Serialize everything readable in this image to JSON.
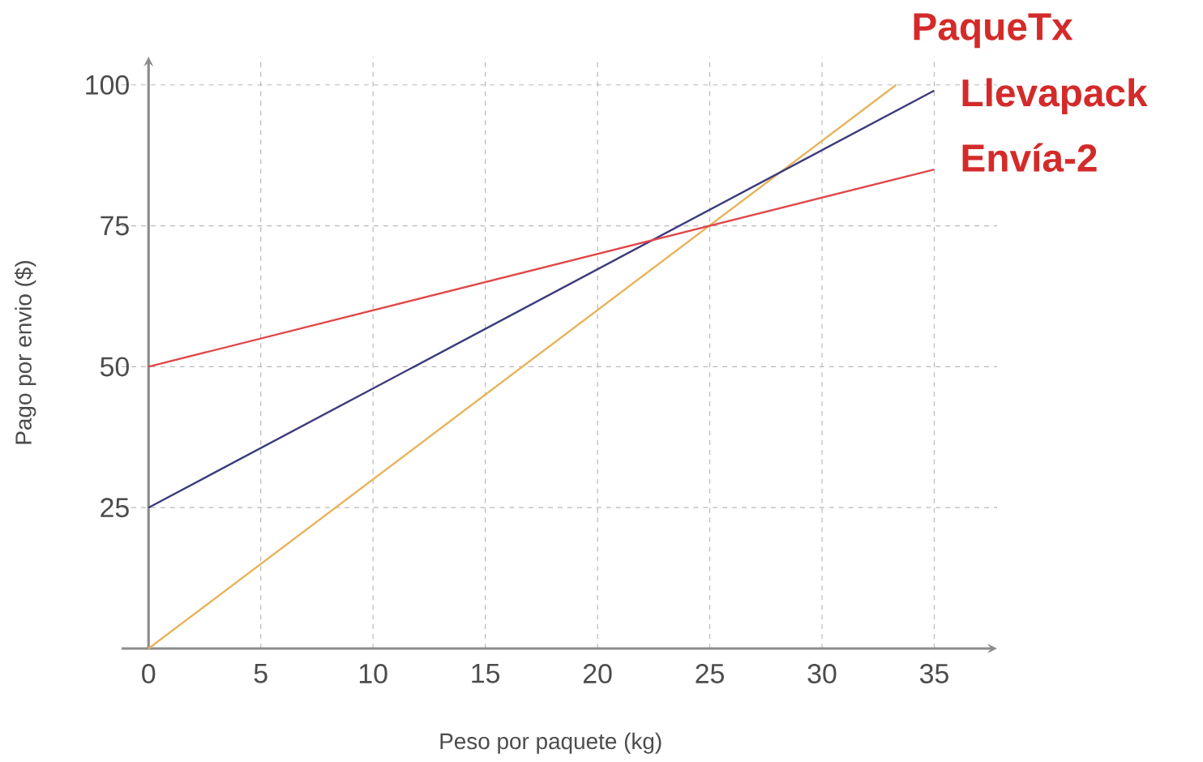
{
  "chart_data": {
    "type": "line",
    "xlabel": "Peso por paquete (kg)",
    "ylabel": "Pago por envio ($)",
    "xlim": [
      -1.2,
      37.8
    ],
    "ylim": [
      0,
      105
    ],
    "xticks": [
      0,
      5,
      10,
      15,
      20,
      25,
      30,
      35
    ],
    "yticks": [
      25,
      50,
      75,
      100
    ],
    "grid": true,
    "line_style": "solid",
    "series": [
      {
        "name": "PaqueTx",
        "color": "#e8b35a",
        "x": [
          0,
          33.3
        ],
        "values": [
          0,
          100
        ]
      },
      {
        "name": "Llevapack",
        "color": "#3b3a7c",
        "x": [
          0,
          35
        ],
        "values": [
          25,
          99
        ]
      },
      {
        "name": "Envía-2",
        "color": "#e0474a",
        "x": [
          0,
          35
        ],
        "values": [
          50,
          85
        ]
      }
    ]
  }
}
